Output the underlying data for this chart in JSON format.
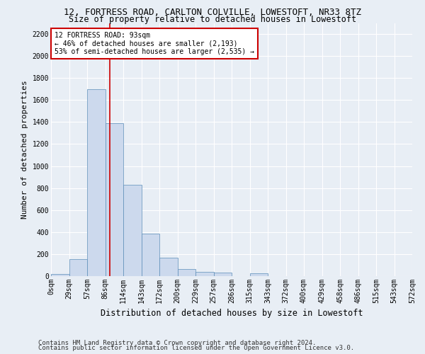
{
  "title_line1": "12, FORTRESS ROAD, CARLTON COLVILLE, LOWESTOFT, NR33 8TZ",
  "title_line2": "Size of property relative to detached houses in Lowestoft",
  "xlabel": "Distribution of detached houses by size in Lowestoft",
  "ylabel": "Number of detached properties",
  "bin_labels": [
    "0sqm",
    "29sqm",
    "57sqm",
    "86sqm",
    "114sqm",
    "143sqm",
    "172sqm",
    "200sqm",
    "229sqm",
    "257sqm",
    "286sqm",
    "315sqm",
    "343sqm",
    "372sqm",
    "400sqm",
    "429sqm",
    "458sqm",
    "486sqm",
    "515sqm",
    "543sqm",
    "572sqm"
  ],
  "bar_values": [
    20,
    155,
    1700,
    1390,
    830,
    385,
    165,
    65,
    38,
    30,
    0,
    28,
    0,
    0,
    0,
    0,
    0,
    0,
    0,
    0
  ],
  "bar_color": "#ccd9ed",
  "bar_edge_color": "#5b8db8",
  "vline_color": "#cc0000",
  "annotation_text": "12 FORTRESS ROAD: 93sqm\n← 46% of detached houses are smaller (2,193)\n53% of semi-detached houses are larger (2,535) →",
  "annotation_box_color": "#ffffff",
  "annotation_box_edge": "#cc0000",
  "ylim": [
    0,
    2300
  ],
  "yticks": [
    0,
    200,
    400,
    600,
    800,
    1000,
    1200,
    1400,
    1600,
    1800,
    2000,
    2200
  ],
  "footer_line1": "Contains HM Land Registry data © Crown copyright and database right 2024.",
  "footer_line2": "Contains public sector information licensed under the Open Government Licence v3.0.",
  "background_color": "#e8eef5",
  "plot_bg_color": "#e8eef5",
  "title_fontsize": 9,
  "subtitle_fontsize": 8.5,
  "axis_label_fontsize": 8,
  "tick_fontsize": 7,
  "footer_fontsize": 6.5
}
